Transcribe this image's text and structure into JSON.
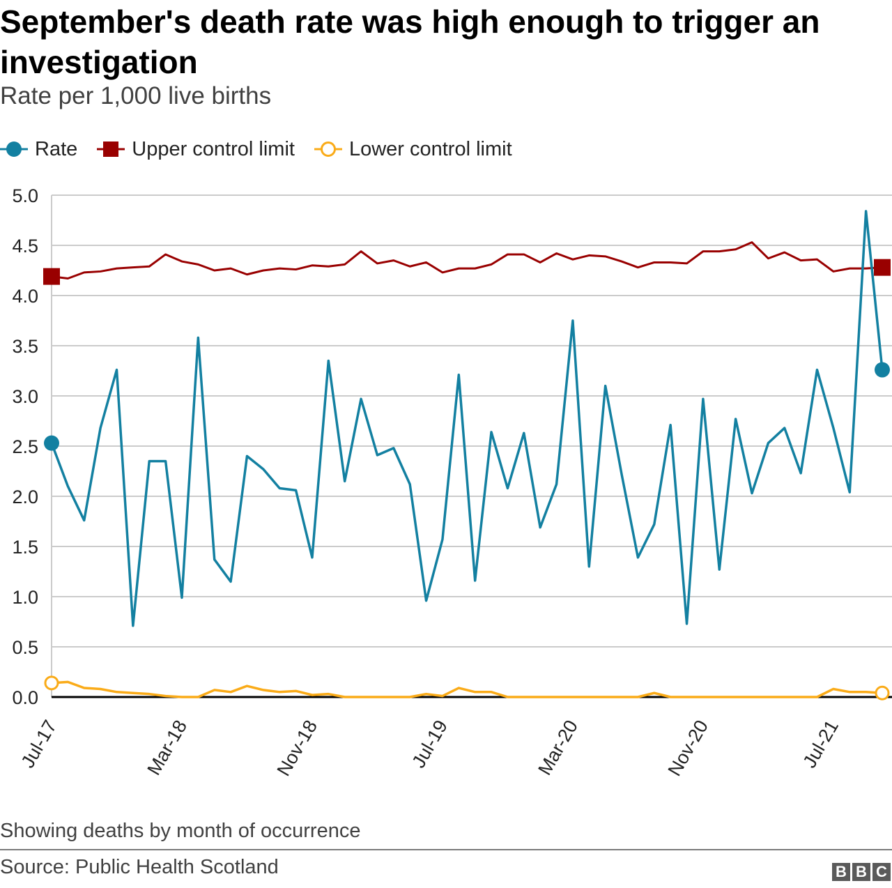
{
  "title": "September's death rate was high enough to trigger an investigation",
  "subtitle": "Rate per 1,000 live births",
  "note": "Showing deaths by month of occurrence",
  "source": "Source: Public Health Scotland",
  "logo": "BBC",
  "chart_data": {
    "type": "line",
    "title": "September's death rate was high enough to trigger an investigation",
    "subtitle": "Rate per 1,000 live births",
    "xlabel": "",
    "ylabel": "",
    "ylim": [
      0,
      5
    ],
    "yticks": [
      "0.0",
      "0.5",
      "1.0",
      "1.5",
      "2.0",
      "2.5",
      "3.0",
      "3.5",
      "4.0",
      "4.5",
      "5.0"
    ],
    "grid": true,
    "legend_placement": "top-left",
    "x": [
      "2017-07",
      "2017-08",
      "2017-09",
      "2017-10",
      "2017-11",
      "2017-12",
      "2018-01",
      "2018-02",
      "2018-03",
      "2018-04",
      "2018-05",
      "2018-06",
      "2018-07",
      "2018-08",
      "2018-09",
      "2018-10",
      "2018-11",
      "2018-12",
      "2019-01",
      "2019-02",
      "2019-03",
      "2019-04",
      "2019-05",
      "2019-06",
      "2019-07",
      "2019-08",
      "2019-09",
      "2019-10",
      "2019-11",
      "2019-12",
      "2020-01",
      "2020-02",
      "2020-03",
      "2020-04",
      "2020-05",
      "2020-06",
      "2020-07",
      "2020-08",
      "2020-09",
      "2020-10",
      "2020-11",
      "2020-12",
      "2021-01",
      "2021-02",
      "2021-03",
      "2021-04",
      "2021-05",
      "2021-06",
      "2021-07",
      "2021-08",
      "2021-09",
      "2021-10"
    ],
    "xtick_labels": [
      {
        "index": 0,
        "label": "Jul-17"
      },
      {
        "index": 8,
        "label": "Mar-18"
      },
      {
        "index": 16,
        "label": "Nov-18"
      },
      {
        "index": 24,
        "label": "Jul-19"
      },
      {
        "index": 32,
        "label": "Mar-20"
      },
      {
        "index": 40,
        "label": "Nov-20"
      },
      {
        "index": 48,
        "label": "Jul-21"
      }
    ],
    "series": [
      {
        "name": "Rate",
        "color": "#1380A1",
        "marker": "circle-filled",
        "values": [
          2.53,
          2.1,
          1.76,
          2.68,
          3.26,
          0.71,
          2.35,
          2.35,
          0.99,
          3.58,
          1.37,
          1.15,
          2.4,
          2.27,
          2.08,
          2.06,
          1.39,
          3.35,
          2.15,
          2.97,
          2.41,
          2.48,
          2.12,
          0.96,
          1.57,
          3.21,
          1.16,
          2.64,
          2.08,
          2.63,
          1.69,
          2.12,
          3.75,
          1.3,
          3.1,
          2.22,
          1.39,
          1.72,
          2.71,
          0.73,
          2.97,
          1.27,
          2.77,
          2.03,
          2.53,
          2.68,
          2.23,
          3.26,
          2.68,
          2.04,
          4.84,
          3.26
        ]
      },
      {
        "name": "Upper control limit",
        "color": "#990000",
        "marker": "square-filled",
        "values": [
          4.19,
          4.17,
          4.23,
          4.24,
          4.27,
          4.28,
          4.29,
          4.41,
          4.34,
          4.31,
          4.25,
          4.27,
          4.21,
          4.25,
          4.27,
          4.26,
          4.3,
          4.29,
          4.31,
          4.44,
          4.32,
          4.35,
          4.29,
          4.33,
          4.23,
          4.27,
          4.27,
          4.31,
          4.41,
          4.41,
          4.33,
          4.42,
          4.36,
          4.4,
          4.39,
          4.34,
          4.28,
          4.33,
          4.33,
          4.32,
          4.44,
          4.44,
          4.46,
          4.53,
          4.37,
          4.43,
          4.35,
          4.36,
          4.24,
          4.27,
          4.27,
          4.28
        ]
      },
      {
        "name": "Lower control limit",
        "color": "#FAAB18",
        "marker": "circle-open",
        "values": [
          0.14,
          0.15,
          0.09,
          0.08,
          0.05,
          0.04,
          0.03,
          0.01,
          0.0,
          0.0,
          0.07,
          0.05,
          0.11,
          0.07,
          0.05,
          0.06,
          0.02,
          0.03,
          0.0,
          0.0,
          0.0,
          0.0,
          0.0,
          0.03,
          0.01,
          0.09,
          0.05,
          0.05,
          0.0,
          0.0,
          0.0,
          0.0,
          0.0,
          0.0,
          0.0,
          0.0,
          0.0,
          0.04,
          0.0,
          0.0,
          0.0,
          0.0,
          0.0,
          0.0,
          0.0,
          0.0,
          0.0,
          0.0,
          0.08,
          0.05,
          0.05,
          0.04
        ]
      }
    ]
  }
}
